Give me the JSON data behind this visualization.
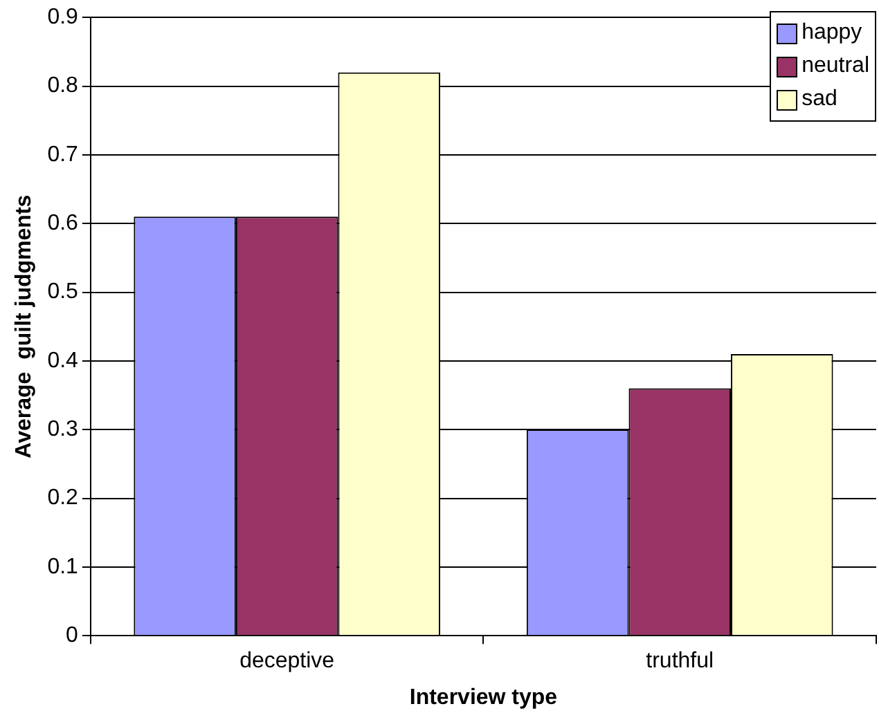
{
  "chart_data": {
    "type": "bar",
    "xlabel": "Interview type",
    "ylabel": "Average  guilt judgments",
    "categories": [
      "deceptive",
      "truthful"
    ],
    "series": [
      {
        "name": "happy",
        "color": "#9999ff",
        "values": [
          0.61,
          0.3
        ]
      },
      {
        "name": "neutral",
        "color": "#993366",
        "values": [
          0.61,
          0.36
        ]
      },
      {
        "name": "sad",
        "color": "#ffffcc",
        "values": [
          0.82,
          0.41
        ]
      }
    ],
    "ylim": [
      0,
      0.9
    ],
    "yticks": [
      0,
      0.1,
      0.2,
      0.3,
      0.4,
      0.5,
      0.6,
      0.7,
      0.8,
      0.9
    ],
    "grid": "y",
    "legend": "top right"
  }
}
